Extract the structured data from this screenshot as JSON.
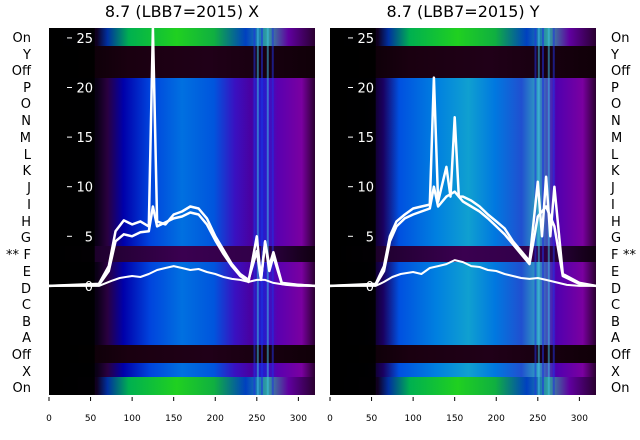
{
  "chart_data": [
    {
      "type": "heatmap",
      "title": "8.7 (LBB7=2015) X",
      "x_ticks": [
        0,
        50,
        100,
        150,
        200,
        250,
        300
      ],
      "xlim": [
        0,
        320
      ],
      "y_ticks": [
        0,
        5,
        10,
        15,
        20,
        25
      ],
      "ylim": [
        -11,
        26
      ],
      "row_labels": [
        "On",
        "X",
        "Off",
        "A",
        "B",
        "C",
        "D",
        "E",
        "F",
        "G",
        "H",
        "I",
        "J",
        "K",
        "L",
        "M",
        "N",
        "O",
        "P",
        "Off",
        "Y",
        "On"
      ],
      "star_marker": "**",
      "marked_row": "F",
      "marked_side": "left",
      "grid": false,
      "series": [
        {
          "name": "",
          "x": [
            0,
            60,
            72,
            80,
            90,
            100,
            110,
            120,
            125,
            130,
            140,
            150,
            160,
            170,
            180,
            190,
            200,
            210,
            220,
            230,
            240,
            250,
            255,
            260,
            265,
            270,
            280,
            300,
            320
          ],
          "y": [
            0,
            0.2,
            2,
            5.5,
            6.6,
            6.2,
            6.5,
            6.0,
            26,
            6.5,
            6.2,
            7.2,
            7.5,
            8.0,
            7.8,
            6.8,
            5.0,
            3.6,
            2.2,
            1.2,
            0.6,
            3.5,
            0.6,
            4.5,
            2,
            3.4,
            0.3,
            0.1,
            0
          ]
        },
        {
          "name": "",
          "x": [
            0,
            60,
            72,
            80,
            90,
            100,
            110,
            120,
            125,
            130,
            140,
            150,
            160,
            170,
            180,
            190,
            200,
            210,
            220,
            230,
            240,
            250,
            255,
            260,
            265,
            270,
            280,
            300,
            320
          ],
          "y": [
            0,
            0.1,
            1.5,
            4.5,
            5.2,
            5.0,
            5.4,
            5.5,
            8.0,
            6.0,
            6.4,
            6.8,
            7.0,
            7.4,
            7.2,
            6.2,
            4.6,
            3.2,
            2.0,
            1.0,
            0.4,
            5.0,
            0.6,
            4.4,
            1.5,
            3.0,
            0.2,
            0.1,
            0
          ]
        },
        {
          "name": "",
          "x": [
            0,
            60,
            75,
            85,
            100,
            110,
            120,
            130,
            140,
            150,
            160,
            170,
            180,
            190,
            200,
            210,
            220,
            230,
            240,
            250,
            260,
            270,
            285,
            300,
            320
          ],
          "y": [
            0,
            0,
            0.5,
            0.8,
            1.0,
            0.9,
            1.2,
            1.6,
            1.8,
            2.0,
            1.8,
            1.6,
            1.7,
            1.4,
            1.2,
            0.9,
            0.7,
            0.6,
            0.4,
            0.6,
            0.6,
            0.3,
            0.1,
            0,
            0
          ]
        }
      ]
    },
    {
      "type": "heatmap",
      "title": "8.7 (LBB7=2015) Y",
      "x_ticks": [
        0,
        50,
        100,
        150,
        200,
        250,
        300
      ],
      "xlim": [
        0,
        320
      ],
      "y_ticks": [
        0,
        5,
        10,
        15,
        20,
        25
      ],
      "ylim": [
        -11,
        26
      ],
      "row_labels": [
        "On",
        "X",
        "Off",
        "A",
        "B",
        "C",
        "D",
        "E",
        "F",
        "G",
        "H",
        "I",
        "J",
        "K",
        "L",
        "M",
        "N",
        "O",
        "P",
        "Off",
        "Y",
        "On"
      ],
      "star_marker": "**",
      "marked_row": "F",
      "marked_side": "right",
      "grid": false,
      "series": [
        {
          "name": "",
          "x": [
            0,
            55,
            65,
            72,
            80,
            90,
            100,
            110,
            120,
            125,
            130,
            140,
            145,
            150,
            155,
            160,
            170,
            180,
            190,
            200,
            210,
            220,
            230,
            240,
            250,
            255,
            260,
            265,
            270,
            280,
            300,
            320
          ],
          "y": [
            0,
            0.2,
            2,
            5,
            6.5,
            7.2,
            7.8,
            8.0,
            8.2,
            21,
            8.5,
            12,
            9,
            17,
            9,
            9.0,
            8.6,
            8.0,
            7.2,
            6.5,
            5.8,
            4.5,
            3.5,
            2.5,
            10.5,
            5,
            11,
            5,
            10,
            1.2,
            0.3,
            0
          ]
        },
        {
          "name": "",
          "x": [
            0,
            55,
            65,
            72,
            80,
            90,
            100,
            110,
            120,
            125,
            130,
            140,
            150,
            160,
            170,
            180,
            190,
            200,
            210,
            220,
            230,
            240,
            250,
            260,
            270,
            280,
            300,
            320
          ],
          "y": [
            0,
            0.1,
            1.5,
            4.5,
            6.0,
            6.8,
            7.2,
            7.5,
            7.8,
            10,
            8.0,
            9.0,
            9.5,
            8.5,
            8.0,
            7.5,
            6.8,
            6.0,
            5.2,
            4.2,
            3.2,
            2.2,
            7,
            8,
            6,
            1.0,
            0.2,
            0
          ]
        },
        {
          "name": "",
          "x": [
            0,
            55,
            65,
            75,
            85,
            100,
            110,
            120,
            130,
            140,
            150,
            160,
            170,
            180,
            190,
            200,
            210,
            220,
            230,
            240,
            250,
            260,
            270,
            285,
            300,
            320
          ],
          "y": [
            0,
            0,
            0.4,
            0.9,
            1.2,
            1.4,
            1.2,
            1.8,
            2.0,
            2.2,
            2.6,
            2.4,
            2.0,
            1.9,
            1.6,
            1.5,
            1.2,
            1.0,
            0.8,
            0.7,
            0.8,
            0.6,
            0.4,
            0.1,
            0,
            0
          ]
        }
      ]
    }
  ]
}
